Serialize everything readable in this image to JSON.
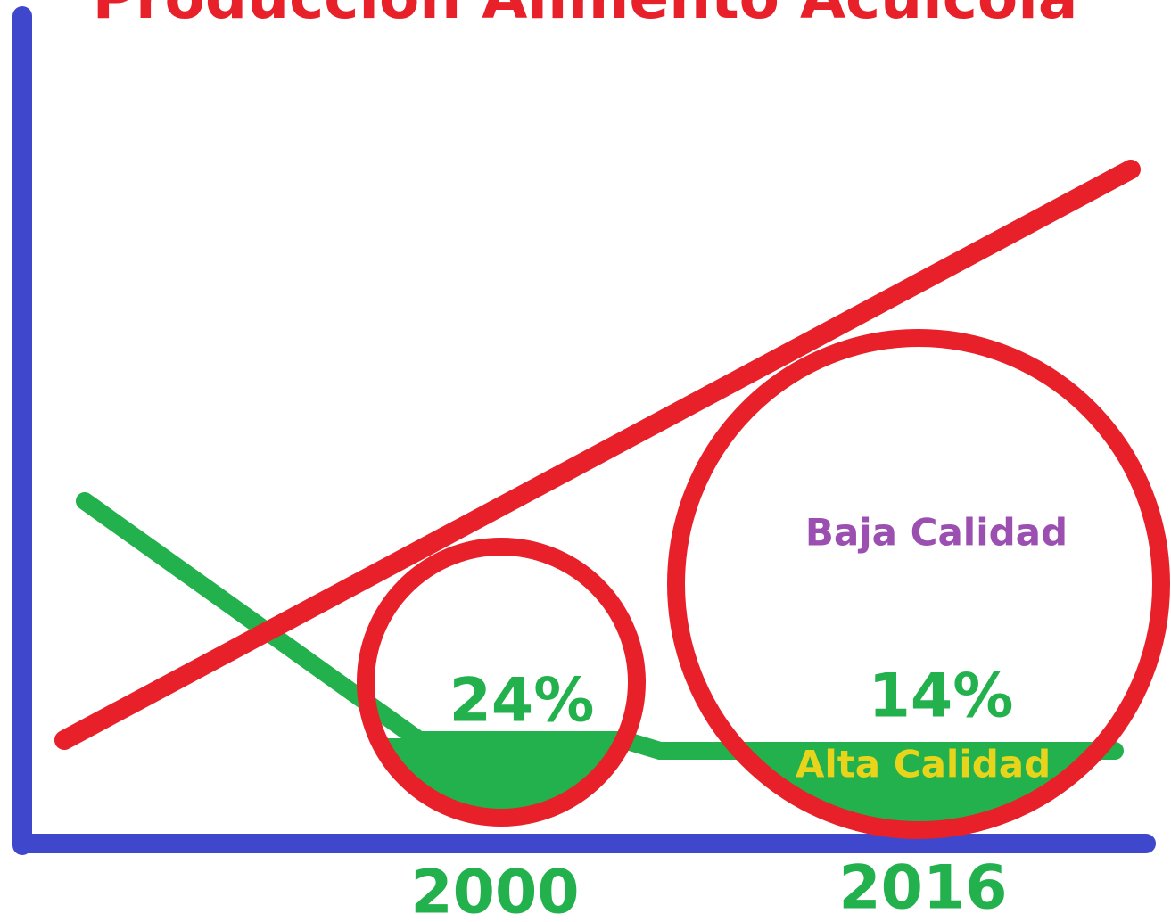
{
  "title": "Producción Alimento Acuícola",
  "labels": {
    "low_quality": "Baja Calidad",
    "high_quality": "Alta Calidad"
  },
  "periods": [
    {
      "year": "2000",
      "share": "24%"
    },
    {
      "year": "2016",
      "share": "14%"
    }
  ]
}
